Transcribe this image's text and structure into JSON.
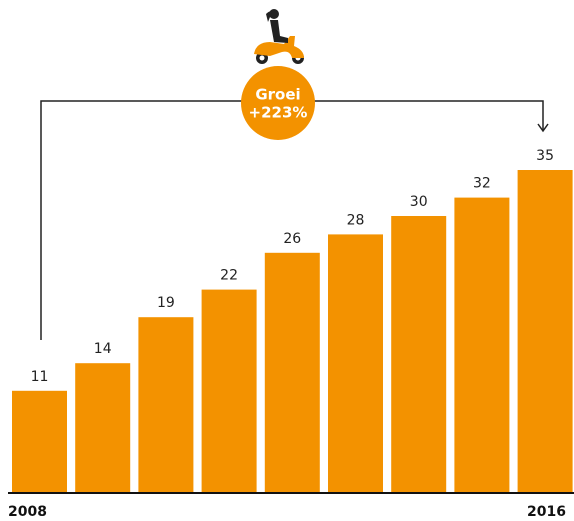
{
  "chart_data": {
    "type": "bar",
    "categories": [
      "2008",
      null,
      null,
      null,
      null,
      null,
      null,
      null,
      "2016"
    ],
    "values": [
      11,
      14,
      19,
      22,
      26,
      28,
      30,
      32,
      35
    ],
    "color": "#f39200",
    "annotation": {
      "title": "Groei",
      "text": "+223%"
    }
  }
}
